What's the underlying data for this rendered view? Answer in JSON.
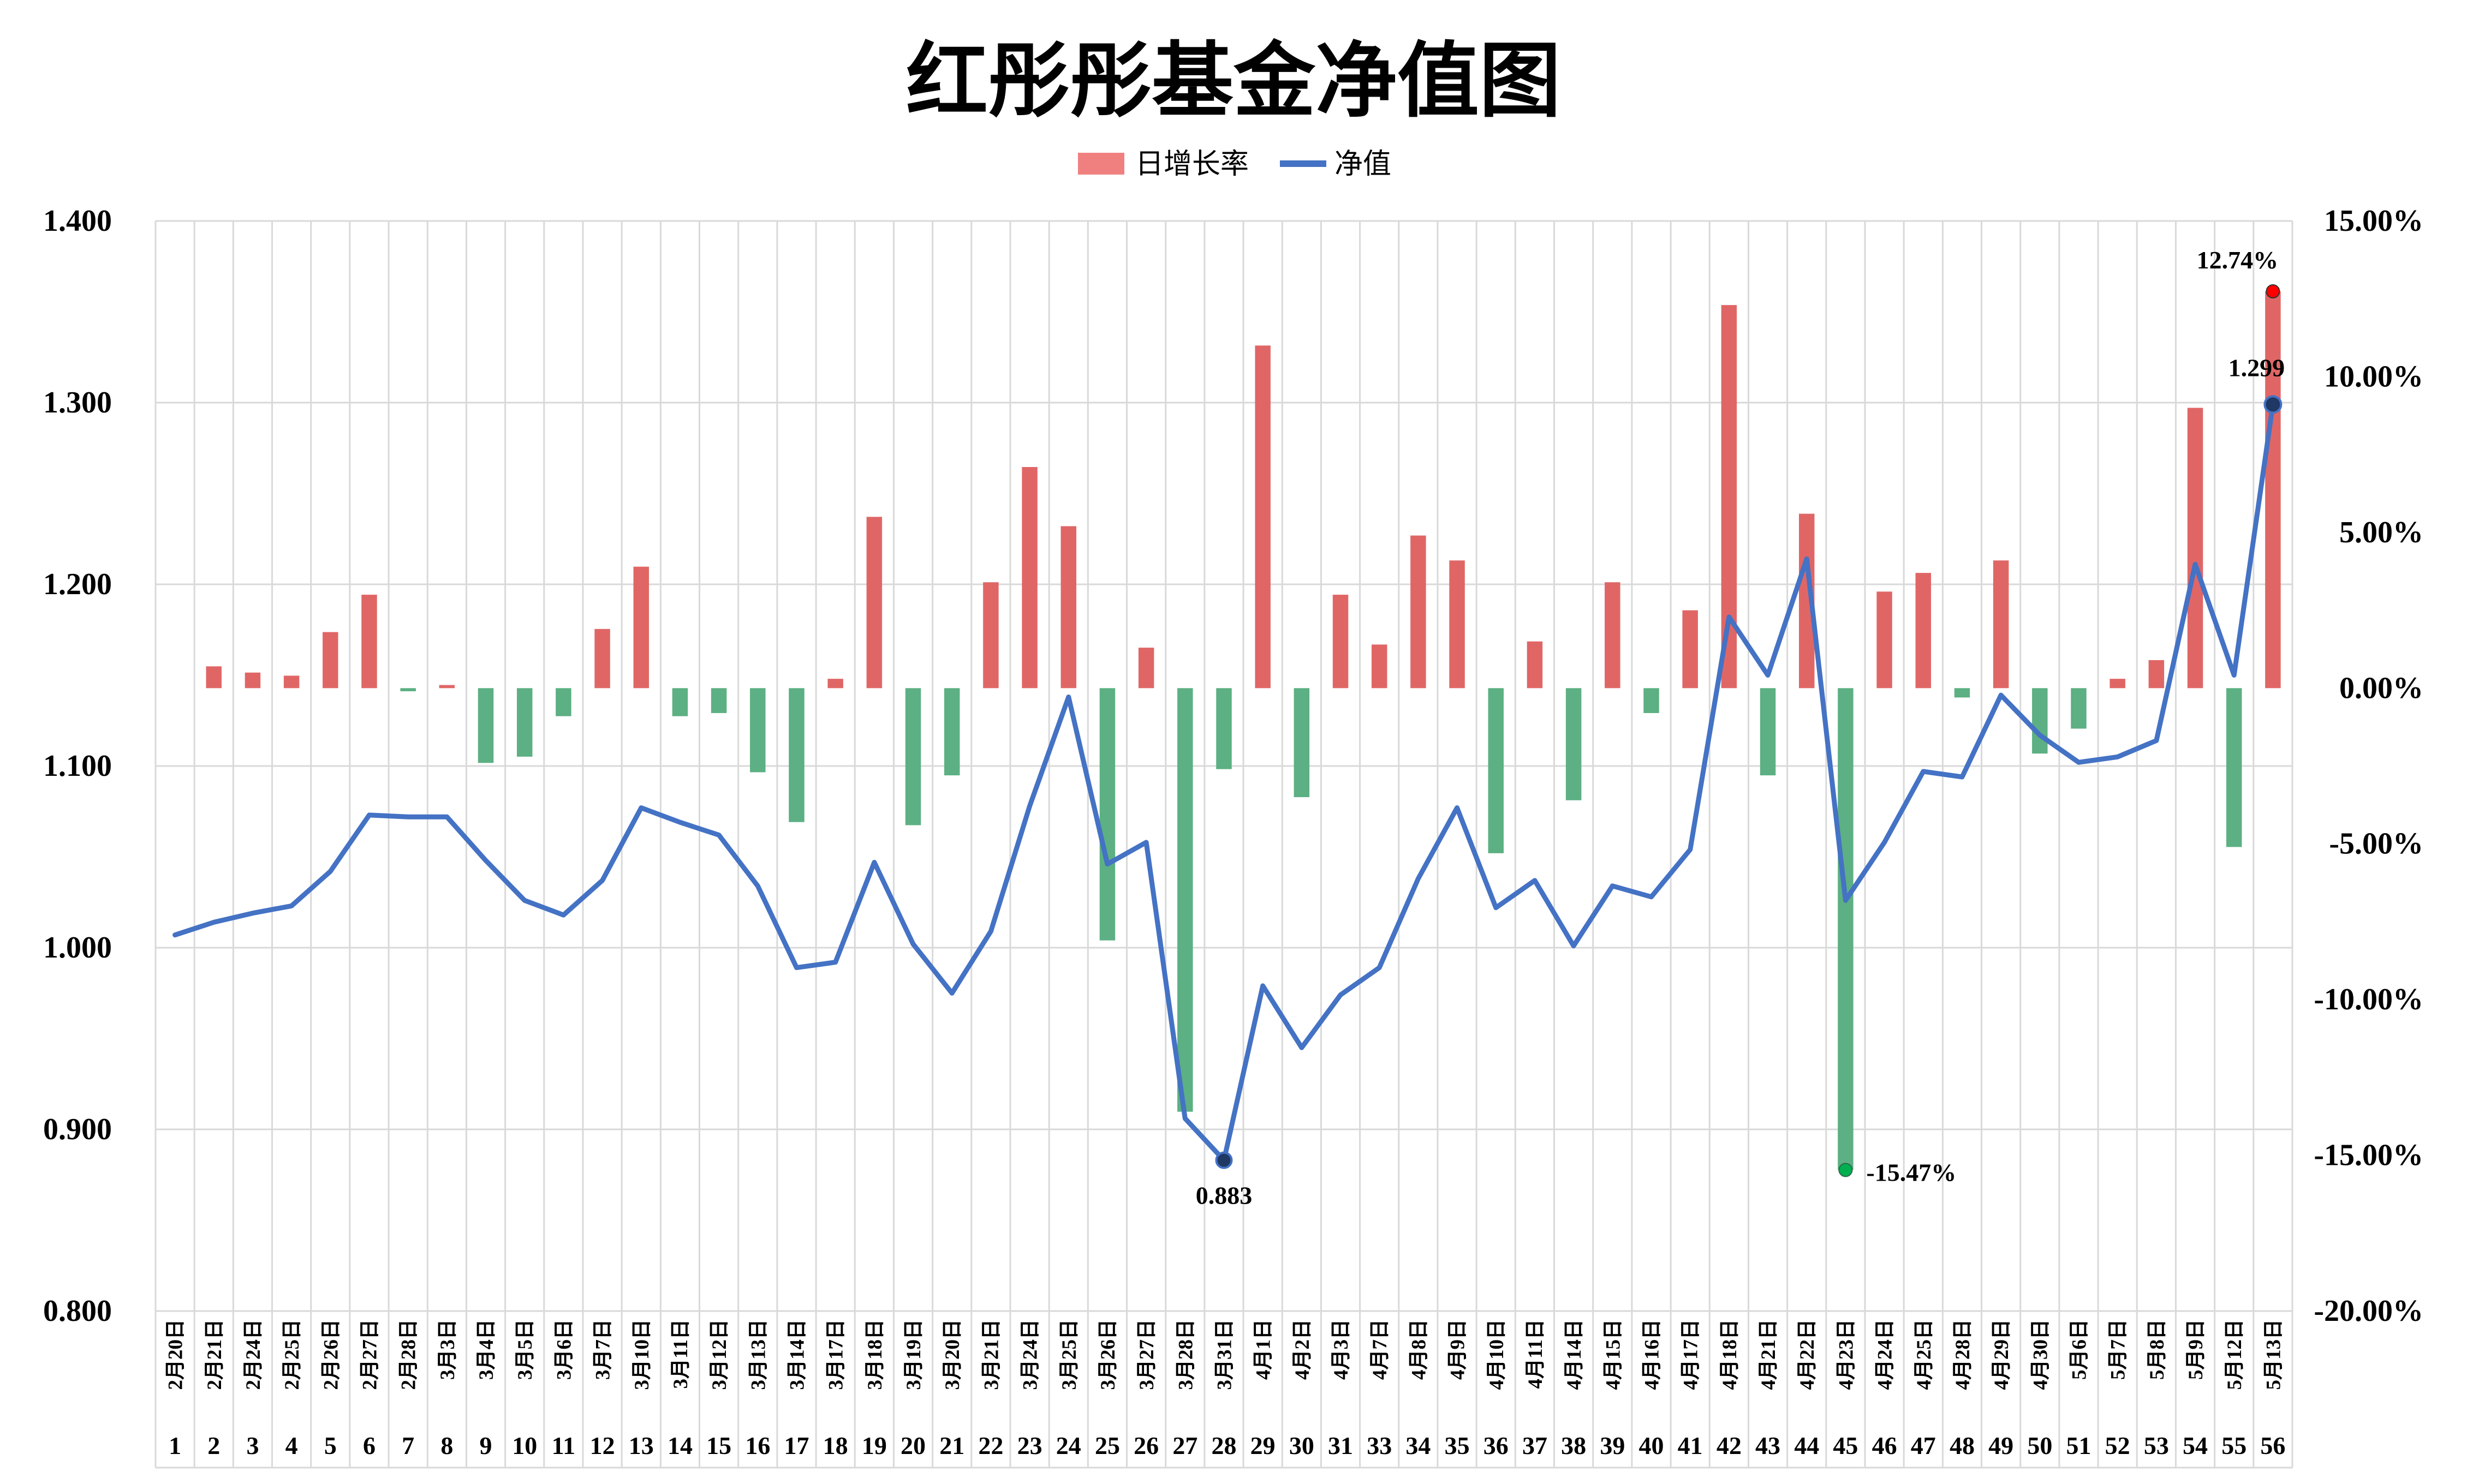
{
  "chart_data": {
    "type": "bar+line",
    "title": "红彤彤基金净值图",
    "legend": {
      "position": "top-center",
      "items": [
        {
          "name": "日增长率",
          "kind": "bar",
          "color": "#f08080"
        },
        {
          "name": "净值",
          "kind": "line",
          "color": "#4472c4"
        }
      ]
    },
    "left_axis": {
      "min": 0.8,
      "max": 1.4,
      "step": 0.1,
      "tick_labels": [
        "0.800",
        "0.900",
        "1.000",
        "1.100",
        "1.200",
        "1.300",
        "1.400"
      ]
    },
    "right_axis": {
      "min": -20,
      "max": 15,
      "step": 5,
      "unit": "%",
      "tick_labels": [
        "-20.00%",
        "-15.00%",
        "-10.00%",
        "-5.00%",
        "0.00%",
        "5.00%",
        "10.00%",
        "15.00%"
      ]
    },
    "grid": true,
    "dates": [
      "2月20日",
      "2月21日",
      "2月24日",
      "2月25日",
      "2月26日",
      "2月27日",
      "2月28日",
      "3月3日",
      "3月4日",
      "3月5日",
      "3月6日",
      "3月7日",
      "3月10日",
      "3月11日",
      "3月12日",
      "3月13日",
      "3月14日",
      "3月17日",
      "3月18日",
      "3月19日",
      "3月20日",
      "3月21日",
      "3月24日",
      "3月25日",
      "3月26日",
      "3月27日",
      "3月28日",
      "3月31日",
      "4月1日",
      "4月2日",
      "4月3日",
      "4月7日",
      "4月8日",
      "4月9日",
      "4月10日",
      "4月11日",
      "4月14日",
      "4月15日",
      "4月16日",
      "4月17日",
      "4月18日",
      "4月21日",
      "4月22日",
      "4月23日",
      "4月24日",
      "4月25日",
      "4月28日",
      "4月29日",
      "4月30日",
      "5月6日",
      "5月7日",
      "5月8日",
      "5月9日",
      "5月12日",
      "5月13日"
    ],
    "indices": [
      "1",
      "2",
      "3",
      "4",
      "5",
      "6",
      "7",
      "8",
      "9",
      "10",
      "11",
      "12",
      "13",
      "14",
      "15",
      "16",
      "17",
      "18",
      "19",
      "20",
      "21",
      "22",
      "23",
      "24",
      "25",
      "26",
      "27",
      "28",
      "29",
      "30",
      "31",
      "33",
      "34",
      "35",
      "36",
      "37",
      "38",
      "39",
      "40",
      "41",
      "42",
      "43",
      "44",
      "45",
      "46",
      "47",
      "48",
      "49",
      "50",
      "51",
      "52",
      "53",
      "54",
      "55",
      "56"
    ],
    "series": [
      {
        "name": "日增长率",
        "axis": "right",
        "values": [
          null,
          0.7,
          0.5,
          0.4,
          1.8,
          3.0,
          -0.1,
          0.1,
          -2.4,
          -2.2,
          -0.9,
          1.9,
          3.9,
          -0.9,
          -0.8,
          -2.7,
          -4.3,
          0.3,
          5.5,
          -4.4,
          -2.8,
          3.4,
          7.1,
          5.2,
          -8.1,
          1.3,
          -13.6,
          -2.6,
          11.0,
          -3.5,
          3.0,
          1.4,
          4.9,
          4.1,
          -5.3,
          1.5,
          -3.6,
          3.4,
          -0.8,
          2.5,
          12.3,
          -2.8,
          5.6,
          -15.47,
          3.1,
          3.7,
          -0.3,
          4.1,
          -2.1,
          -1.3,
          0.3,
          0.9,
          9.0,
          -5.1,
          12.74
        ]
      },
      {
        "name": "净值",
        "axis": "left",
        "values": [
          1.007,
          1.014,
          1.019,
          1.023,
          1.042,
          1.073,
          1.072,
          1.072,
          1.048,
          1.026,
          1.018,
          1.037,
          1.077,
          1.069,
          1.062,
          1.034,
          0.989,
          0.992,
          1.047,
          1.002,
          0.975,
          1.009,
          1.078,
          1.138,
          1.046,
          1.058,
          0.906,
          0.883,
          0.979,
          0.945,
          0.974,
          0.989,
          1.038,
          1.077,
          1.022,
          1.037,
          1.001,
          1.034,
          1.028,
          1.054,
          1.182,
          1.15,
          1.214,
          1.026,
          1.058,
          1.097,
          1.094,
          1.139,
          1.117,
          1.102,
          1.105,
          1.114,
          1.211,
          1.15,
          1.299
        ]
      }
    ],
    "annotations": {
      "max_rate": {
        "label": "12.74%",
        "index": 54,
        "color": "#ff0000"
      },
      "min_rate": {
        "label": "-15.47%",
        "index": 43,
        "color": "#00b050"
      },
      "max_nav": {
        "label": "1.299",
        "index": 54,
        "color": "#1f3864"
      },
      "min_nav": {
        "label": "0.883",
        "index": 27,
        "color": "#1f3864"
      }
    },
    "colors": {
      "bar_positive": "#e06666",
      "bar_negative": "#5cb083",
      "line": "#4472c4",
      "grid": "#d9d9d9"
    }
  }
}
